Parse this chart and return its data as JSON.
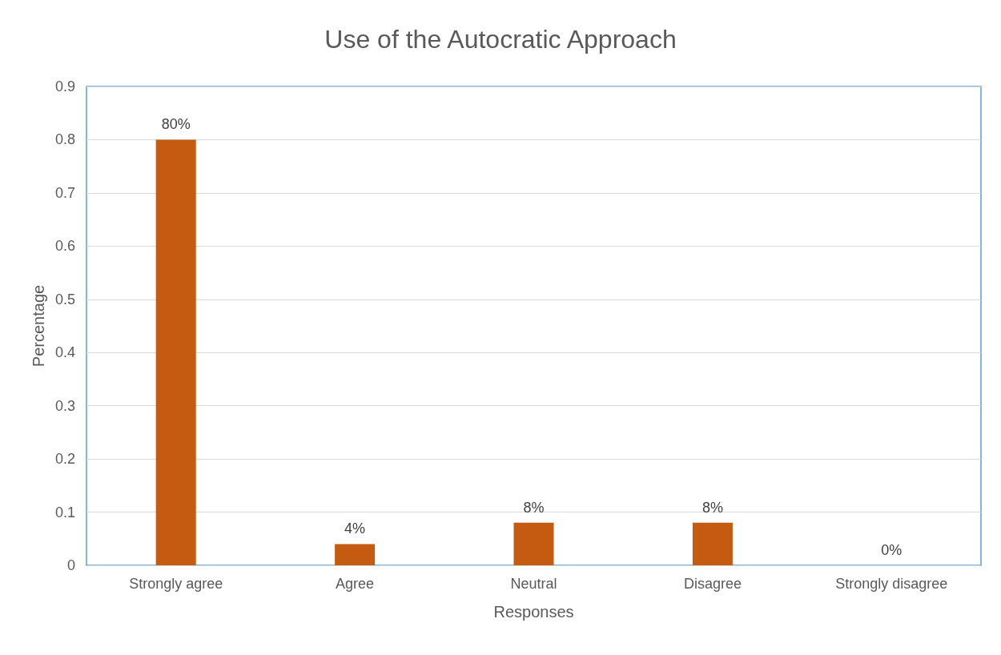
{
  "chart_data": {
    "type": "bar",
    "title": "Use of the Autocratic Approach",
    "xlabel": "Responses",
    "ylabel": "Percentage",
    "categories": [
      "Strongly agree",
      "Agree",
      "Neutral",
      "Disagree",
      "Strongly disagree"
    ],
    "values": [
      0.8,
      0.04,
      0.08,
      0.08,
      0
    ],
    "value_labels": [
      "80%",
      "4%",
      "8%",
      "8%",
      "0%"
    ],
    "color": "#c55a11",
    "ylim": [
      0,
      0.9
    ],
    "yticks": [
      0,
      0.1,
      0.2,
      0.3,
      0.4,
      0.5,
      0.6,
      0.7,
      0.8,
      0.9
    ],
    "grid": "y"
  }
}
